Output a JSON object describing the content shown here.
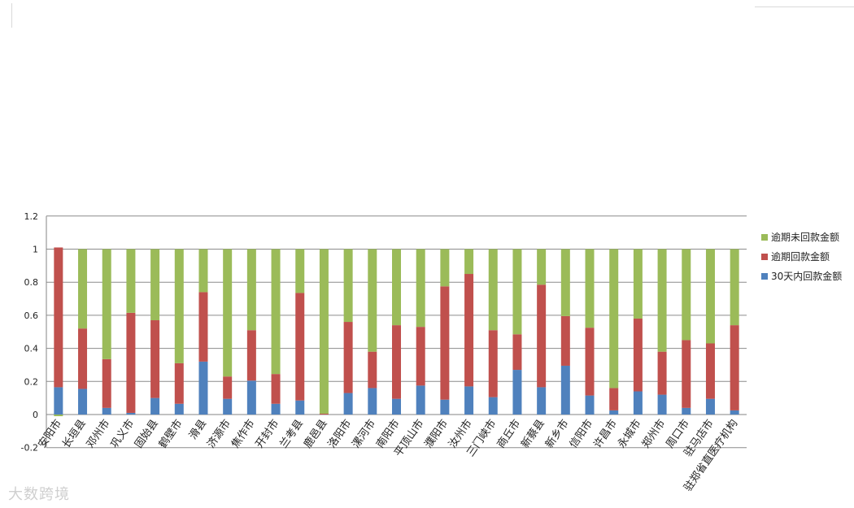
{
  "chart_data": {
    "type": "bar",
    "stacked": true,
    "categories": [
      "安阳市",
      "长垣县",
      "邓州市",
      "巩义市",
      "固始县",
      "鹤壁市",
      "滑县",
      "济源市",
      "焦作市",
      "开封市",
      "兰考县",
      "鹿邑县",
      "洛阳市",
      "漯河市",
      "南阳市",
      "平顶山市",
      "濮阳市",
      "汝州市",
      "三门峡市",
      "商丘市",
      "新蔡县",
      "新乡市",
      "信阳市",
      "许昌市",
      "永城市",
      "郑州市",
      "周口市",
      "驻马店市",
      "驻郑省直医疗机构"
    ],
    "series": [
      {
        "name": "逾期未回款金额",
        "color": "#9bbb59",
        "values": [
          -0.01,
          0.48,
          0.665,
          0.385,
          0.43,
          0.69,
          0.26,
          0.77,
          0.49,
          0.755,
          0.265,
          0.995,
          0.44,
          0.62,
          0.46,
          0.47,
          0.225,
          0.15,
          0.49,
          0.515,
          0.215,
          0.405,
          0.475,
          0.84,
          0.42,
          0.62,
          0.55,
          0.57,
          0.46
        ]
      },
      {
        "name": "逾期回款金额",
        "color": "#c0504d",
        "values": [
          0.845,
          0.365,
          0.295,
          0.605,
          0.47,
          0.245,
          0.42,
          0.135,
          0.305,
          0.18,
          0.65,
          0.005,
          0.43,
          0.22,
          0.445,
          0.355,
          0.685,
          0.68,
          0.405,
          0.215,
          0.62,
          0.3,
          0.41,
          0.135,
          0.44,
          0.26,
          0.41,
          0.335,
          0.515
        ]
      },
      {
        "name": "30天内回款金额",
        "color": "#4f81bd",
        "values": [
          0.165,
          0.155,
          0.04,
          0.01,
          0.1,
          0.065,
          0.32,
          0.095,
          0.205,
          0.065,
          0.085,
          0,
          0.13,
          0.16,
          0.095,
          0.175,
          0.09,
          0.17,
          0.105,
          0.27,
          0.165,
          0.295,
          0.115,
          0.025,
          0.14,
          0.12,
          0.04,
          0.095,
          0.025
        ]
      }
    ],
    "yticks": [
      "-0.2",
      "0",
      "0.2",
      "0.4",
      "0.6",
      "0.8",
      "1",
      "1.2"
    ],
    "ylim": [
      -0.2,
      1.2
    ],
    "grid": true,
    "legend_position": "right",
    "xlabel": "",
    "ylabel": "",
    "title": ""
  },
  "watermark": "大数跨境"
}
